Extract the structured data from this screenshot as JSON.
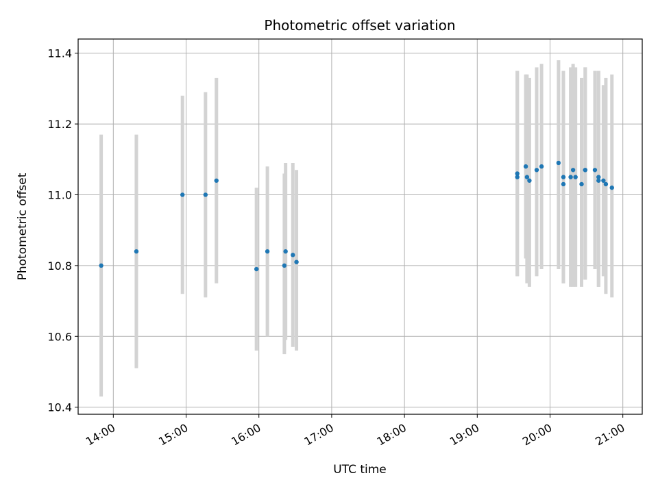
{
  "chart_data": {
    "type": "scatter",
    "title": "Photometric offset variation",
    "xlabel": "UTC time",
    "ylabel": "Photometric offset",
    "grid": true,
    "legend": "none",
    "x_axis_kind": "time",
    "xlim": [
      "13:31",
      "21:16"
    ],
    "ylim": [
      10.38,
      11.44
    ],
    "x_ticks": [
      "14:00",
      "15:00",
      "16:00",
      "17:00",
      "18:00",
      "19:00",
      "20:00",
      "21:00"
    ],
    "y_ticks": [
      "10.4",
      "10.6",
      "10.8",
      "11.0",
      "11.2",
      "11.4"
    ],
    "colors": {
      "point": "#1f77b4",
      "errorbar": "#d3d3d3",
      "grid": "#b0b0b0"
    },
    "series": [
      {
        "points": [
          {
            "x": "13:50",
            "y": 10.8,
            "lo": 10.43,
            "hi": 11.17
          },
          {
            "x": "14:19",
            "y": 10.84,
            "lo": 10.51,
            "hi": 11.17
          },
          {
            "x": "14:57",
            "y": 11.0,
            "lo": 10.72,
            "hi": 11.28
          },
          {
            "x": "15:16",
            "y": 11.0,
            "lo": 10.71,
            "hi": 11.29
          },
          {
            "x": "15:25",
            "y": 11.04,
            "lo": 10.75,
            "hi": 11.33
          },
          {
            "x": "15:58",
            "y": 10.79,
            "lo": 10.56,
            "hi": 11.02
          },
          {
            "x": "16:07",
            "y": 10.84,
            "lo": 10.6,
            "hi": 11.08
          },
          {
            "x": "16:21",
            "y": 10.8,
            "lo": 10.55,
            "hi": 11.06
          },
          {
            "x": "16:22",
            "y": 10.84,
            "lo": 10.59,
            "hi": 11.09
          },
          {
            "x": "16:28",
            "y": 10.83,
            "lo": 10.57,
            "hi": 11.09
          },
          {
            "x": "16:31",
            "y": 10.81,
            "lo": 10.56,
            "hi": 11.07
          },
          {
            "x": "19:33",
            "y": 11.05,
            "lo": 10.77,
            "hi": 11.35
          },
          {
            "x": "19:33",
            "y": 11.06,
            "lo": 10.77,
            "hi": 11.35
          },
          {
            "x": "19:40",
            "y": 11.08,
            "lo": 10.82,
            "hi": 11.34
          },
          {
            "x": "19:41",
            "y": 11.05,
            "lo": 10.75,
            "hi": 11.34
          },
          {
            "x": "19:43",
            "y": 11.04,
            "lo": 10.74,
            "hi": 11.33
          },
          {
            "x": "19:49",
            "y": 11.07,
            "lo": 10.77,
            "hi": 11.36
          },
          {
            "x": "19:53",
            "y": 11.08,
            "lo": 10.79,
            "hi": 11.37
          },
          {
            "x": "20:07",
            "y": 11.09,
            "lo": 10.79,
            "hi": 11.38
          },
          {
            "x": "20:11",
            "y": 11.03,
            "lo": 10.75,
            "hi": 11.33
          },
          {
            "x": "20:11",
            "y": 11.05,
            "lo": 10.75,
            "hi": 11.35
          },
          {
            "x": "20:17",
            "y": 11.05,
            "lo": 10.74,
            "hi": 11.36
          },
          {
            "x": "20:19",
            "y": 11.07,
            "lo": 10.74,
            "hi": 11.37
          },
          {
            "x": "20:21",
            "y": 11.05,
            "lo": 10.74,
            "hi": 11.36
          },
          {
            "x": "20:26",
            "y": 11.03,
            "lo": 10.74,
            "hi": 11.33
          },
          {
            "x": "20:29",
            "y": 11.07,
            "lo": 10.76,
            "hi": 11.36
          },
          {
            "x": "20:29",
            "y": 11.07,
            "lo": 10.76,
            "hi": 11.36
          },
          {
            "x": "20:37",
            "y": 11.07,
            "lo": 10.79,
            "hi": 11.35
          },
          {
            "x": "20:40",
            "y": 11.04,
            "lo": 10.74,
            "hi": 11.35
          },
          {
            "x": "20:40",
            "y": 11.05,
            "lo": 10.74,
            "hi": 11.35
          },
          {
            "x": "20:44",
            "y": 11.04,
            "lo": 10.77,
            "hi": 11.31
          },
          {
            "x": "20:46",
            "y": 11.03,
            "lo": 10.72,
            "hi": 11.33
          },
          {
            "x": "20:51",
            "y": 11.02,
            "lo": 10.71,
            "hi": 11.34
          }
        ]
      }
    ]
  }
}
